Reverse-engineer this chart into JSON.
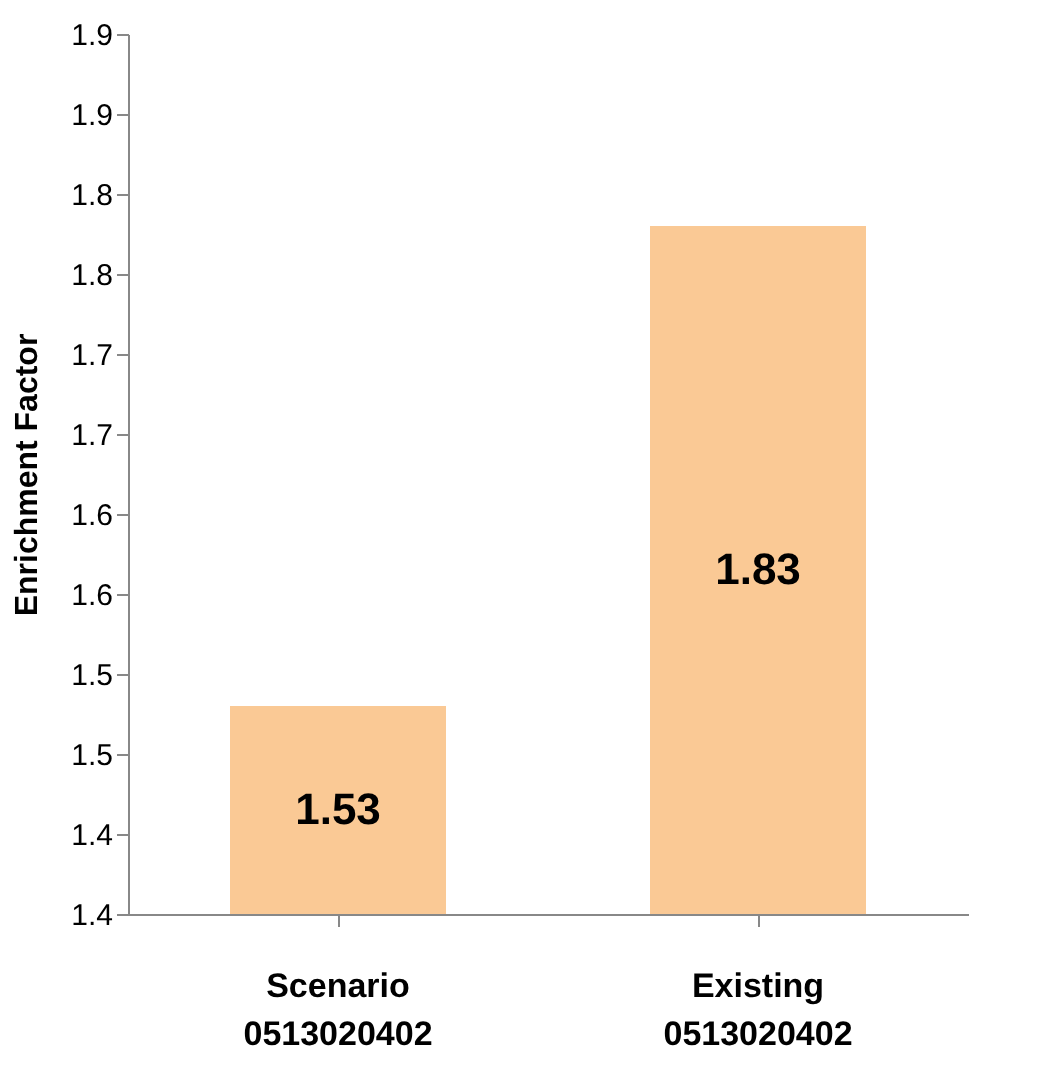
{
  "chart_data": {
    "type": "bar",
    "ylabel": "Enrichment Factor",
    "categories": [
      "Scenario 0513020402",
      "Existing 0513020402"
    ],
    "values": [
      1.53,
      1.83
    ],
    "color": "#fac995",
    "data_labels": true,
    "grid": false,
    "ylim": [
      1.4,
      1.95
    ],
    "yticks": [
      {
        "value": 1.4,
        "label": "1.4"
      },
      {
        "value": 1.45,
        "label": "1.4"
      },
      {
        "value": 1.5,
        "label": "1.5"
      },
      {
        "value": 1.55,
        "label": "1.5"
      },
      {
        "value": 1.6,
        "label": "1.6"
      },
      {
        "value": 1.65,
        "label": "1.6"
      },
      {
        "value": 1.7,
        "label": "1.7"
      },
      {
        "value": 1.75,
        "label": "1.7"
      },
      {
        "value": 1.8,
        "label": "1.8"
      },
      {
        "value": 1.85,
        "label": "1.8"
      },
      {
        "value": 1.9,
        "label": "1.9"
      },
      {
        "value": 1.95,
        "label": "1.9"
      }
    ]
  }
}
